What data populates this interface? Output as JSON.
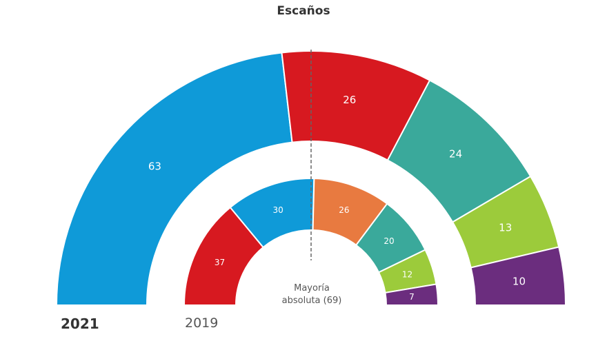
{
  "chart_data": [
    {
      "type": "pie",
      "subtype": "semicircle-donut",
      "title": "Escaños",
      "label": "2021",
      "categories_colors": [
        "#0f9ad8",
        "#d71920",
        "#3aa99b",
        "#9ccb3b",
        "#6b2d7e"
      ],
      "values": [
        63,
        26,
        24,
        13,
        10
      ]
    },
    {
      "type": "pie",
      "subtype": "semicircle-donut",
      "label": "2019",
      "categories_colors": [
        "#d71920",
        "#0f9ad8",
        "#e87a40",
        "#3aa99b",
        "#9ccb3b",
        "#6b2d7e"
      ],
      "values": [
        37,
        30,
        26,
        20,
        12,
        7
      ]
    }
  ],
  "majority_label_line1": "Mayoría",
  "majority_label_line2": "absoluta (69)",
  "majority": 69
}
